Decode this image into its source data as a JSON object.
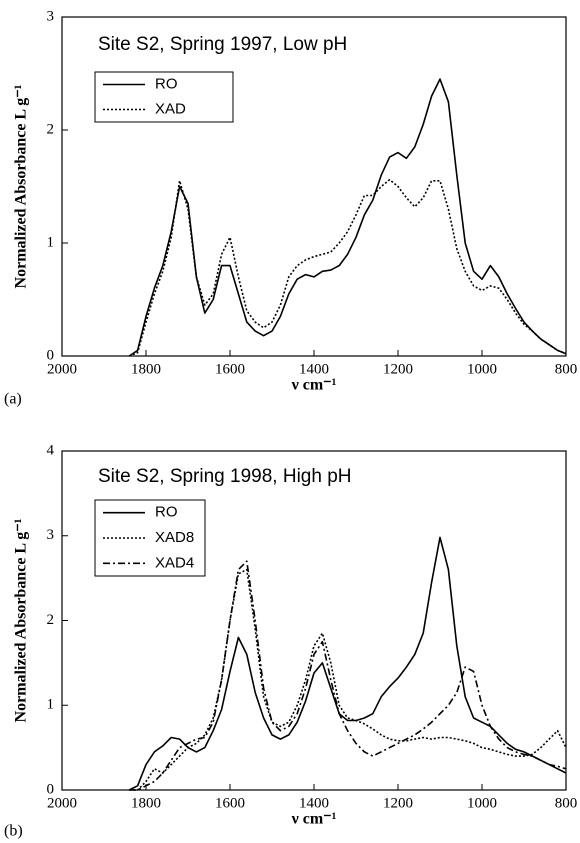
{
  "chart_data": [
    {
      "type": "line",
      "panel_label": "(a)",
      "title": "Site  S2, Spring 1997, Low pH",
      "xlabel": "ν cm⁻¹",
      "ylabel": "Normalized Absorbance L g⁻¹",
      "xlim": [
        2000,
        800
      ],
      "xticks": [
        2000,
        1800,
        1600,
        1400,
        1200,
        1000,
        800
      ],
      "ylim": [
        0,
        3
      ],
      "yticks": [
        0,
        1,
        2,
        3
      ],
      "x": [
        1840,
        1820,
        1800,
        1780,
        1760,
        1740,
        1720,
        1700,
        1680,
        1660,
        1640,
        1620,
        1600,
        1580,
        1560,
        1540,
        1520,
        1500,
        1480,
        1460,
        1440,
        1420,
        1400,
        1380,
        1360,
        1340,
        1320,
        1300,
        1280,
        1260,
        1240,
        1220,
        1200,
        1180,
        1160,
        1140,
        1120,
        1100,
        1080,
        1060,
        1040,
        1020,
        1000,
        980,
        960,
        940,
        920,
        900,
        880,
        860,
        840,
        820,
        800
      ],
      "series": [
        {
          "name": "RO",
          "color": "#000000",
          "linestyle": "solid",
          "values": [
            0,
            0.05,
            0.35,
            0.6,
            0.8,
            1.1,
            1.5,
            1.35,
            0.7,
            0.38,
            0.5,
            0.8,
            0.8,
            0.55,
            0.3,
            0.22,
            0.18,
            0.22,
            0.35,
            0.55,
            0.68,
            0.72,
            0.7,
            0.75,
            0.76,
            0.8,
            0.9,
            1.05,
            1.25,
            1.38,
            1.6,
            1.76,
            1.8,
            1.75,
            1.85,
            2.05,
            2.3,
            2.45,
            2.25,
            1.6,
            1.0,
            0.75,
            0.68,
            0.8,
            0.7,
            0.55,
            0.42,
            0.3,
            0.22,
            0.15,
            0.1,
            0.05,
            0.02
          ]
        },
        {
          "name": "XAD",
          "color": "#000000",
          "linestyle": "dotted",
          "values": [
            0,
            0.03,
            0.3,
            0.55,
            0.75,
            1.05,
            1.55,
            1.3,
            0.7,
            0.45,
            0.55,
            0.9,
            1.05,
            0.7,
            0.4,
            0.3,
            0.25,
            0.3,
            0.45,
            0.7,
            0.8,
            0.85,
            0.88,
            0.9,
            0.92,
            1.0,
            1.1,
            1.25,
            1.42,
            1.42,
            1.5,
            1.56,
            1.5,
            1.4,
            1.32,
            1.4,
            1.55,
            1.55,
            1.3,
            0.95,
            0.75,
            0.62,
            0.58,
            0.62,
            0.6,
            0.5,
            0.38,
            0.28,
            0.22,
            0.15,
            0.1,
            0.05,
            0.02
          ]
        }
      ]
    },
    {
      "type": "line",
      "panel_label": "(b)",
      "title": "Site  S2, Spring 1998, High pH",
      "xlabel": "ν cm⁻¹",
      "ylabel": "Normalized Absorbance L g⁻¹",
      "xlim": [
        2000,
        800
      ],
      "xticks": [
        2000,
        1800,
        1600,
        1400,
        1200,
        1000,
        800
      ],
      "ylim": [
        0,
        4
      ],
      "yticks": [
        0,
        1,
        2,
        3,
        4
      ],
      "x": [
        1840,
        1820,
        1800,
        1780,
        1760,
        1740,
        1720,
        1700,
        1680,
        1660,
        1640,
        1620,
        1600,
        1580,
        1560,
        1540,
        1520,
        1500,
        1480,
        1460,
        1440,
        1420,
        1400,
        1380,
        1360,
        1340,
        1320,
        1300,
        1280,
        1260,
        1240,
        1220,
        1200,
        1180,
        1160,
        1140,
        1120,
        1100,
        1080,
        1060,
        1040,
        1020,
        1000,
        980,
        960,
        940,
        920,
        900,
        880,
        860,
        840,
        820,
        800
      ],
      "series": [
        {
          "name": "RO",
          "color": "#000000",
          "linestyle": "solid",
          "values": [
            0,
            0.05,
            0.3,
            0.45,
            0.52,
            0.62,
            0.6,
            0.5,
            0.45,
            0.5,
            0.7,
            0.95,
            1.4,
            1.8,
            1.6,
            1.15,
            0.85,
            0.65,
            0.6,
            0.65,
            0.8,
            1.05,
            1.38,
            1.5,
            1.2,
            0.9,
            0.82,
            0.82,
            0.85,
            0.9,
            1.1,
            1.22,
            1.32,
            1.45,
            1.6,
            1.85,
            2.45,
            2.98,
            2.6,
            1.7,
            1.1,
            0.85,
            0.8,
            0.75,
            0.65,
            0.55,
            0.48,
            0.45,
            0.4,
            0.35,
            0.3,
            0.25,
            0.2
          ]
        },
        {
          "name": "XAD8",
          "color": "#000000",
          "linestyle": "dotted",
          "values": [
            0,
            0,
            0.1,
            0.25,
            0.2,
            0.3,
            0.4,
            0.5,
            0.55,
            0.65,
            0.85,
            1.3,
            2.0,
            2.55,
            2.6,
            1.9,
            1.1,
            0.8,
            0.75,
            0.8,
            1.0,
            1.3,
            1.7,
            1.85,
            1.5,
            1.0,
            0.85,
            0.82,
            0.78,
            0.72,
            0.65,
            0.6,
            0.58,
            0.58,
            0.6,
            0.62,
            0.6,
            0.62,
            0.62,
            0.6,
            0.58,
            0.55,
            0.5,
            0.48,
            0.45,
            0.42,
            0.4,
            0.4,
            0.42,
            0.5,
            0.6,
            0.7,
            0.5
          ]
        },
        {
          "name": "XAD4",
          "color": "#000000",
          "linestyle": "dashdot",
          "values": [
            0,
            0,
            0.05,
            0.1,
            0.2,
            0.35,
            0.5,
            0.55,
            0.6,
            0.62,
            0.8,
            1.3,
            2.0,
            2.6,
            2.7,
            2.0,
            1.2,
            0.8,
            0.7,
            0.75,
            0.9,
            1.2,
            1.6,
            1.75,
            1.3,
            0.9,
            0.7,
            0.55,
            0.45,
            0.4,
            0.45,
            0.5,
            0.55,
            0.6,
            0.65,
            0.72,
            0.8,
            0.9,
            1.0,
            1.15,
            1.45,
            1.4,
            1.0,
            0.75,
            0.6,
            0.5,
            0.45,
            0.42,
            0.4,
            0.35,
            0.3,
            0.28,
            0.25
          ]
        }
      ]
    }
  ]
}
